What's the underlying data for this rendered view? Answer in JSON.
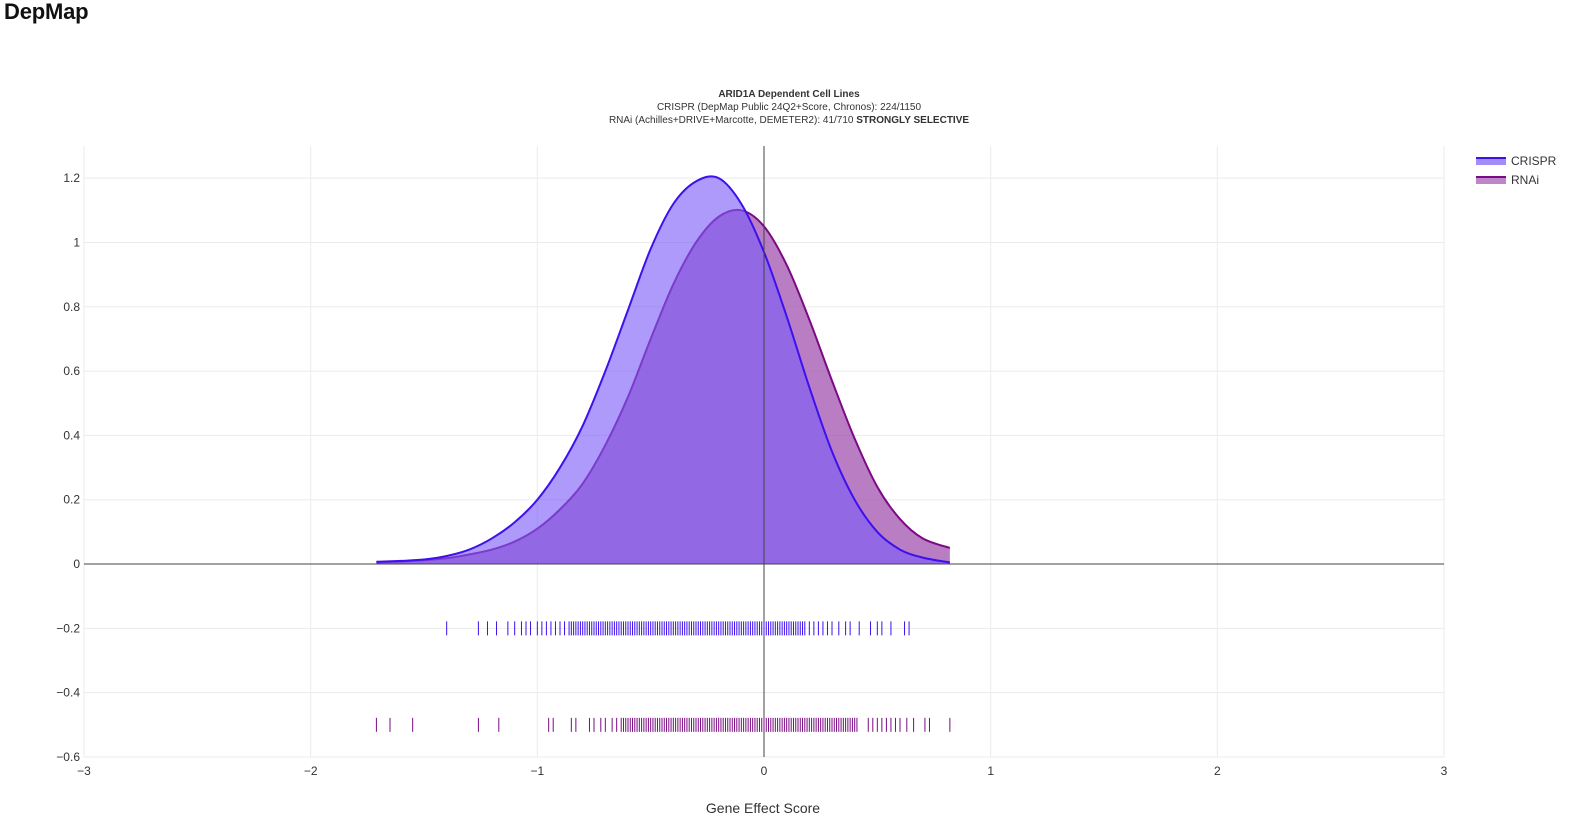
{
  "app": {
    "title": "DepMap"
  },
  "chart_data": {
    "type": "area",
    "title": "ARID1A Dependent Cell Lines",
    "subtitle_lines": [
      {
        "text": "CRISPR (DepMap Public 24Q2+Score, Chronos): 224/1150",
        "bold_suffix": ""
      },
      {
        "text": "RNAi (Achilles+DRIVE+Marcotte, DEMETER2): 41/710 ",
        "bold_suffix": "STRONGLY SELECTIVE"
      }
    ],
    "xlabel": "Gene Effect Score",
    "ylabel": "",
    "xlim": [
      -3,
      3
    ],
    "ylim": [
      -0.6,
      1.3
    ],
    "x_ticks": [
      {
        "value": -3,
        "label": "−3"
      },
      {
        "value": -2,
        "label": "−2"
      },
      {
        "value": -1,
        "label": "−1"
      },
      {
        "value": 0,
        "label": "0"
      },
      {
        "value": 1,
        "label": "1"
      },
      {
        "value": 2,
        "label": "2"
      },
      {
        "value": 3,
        "label": "3"
      }
    ],
    "y_ticks": [
      {
        "value": 1.2,
        "label": "1.2"
      },
      {
        "value": 1,
        "label": "1"
      },
      {
        "value": 0.8,
        "label": "0.8"
      },
      {
        "value": 0.6,
        "label": "0.6"
      },
      {
        "value": 0.4,
        "label": "0.4"
      },
      {
        "value": 0.2,
        "label": "0.2"
      },
      {
        "value": 0,
        "label": "0"
      },
      {
        "value": -0.2,
        "label": "−0.2"
      },
      {
        "value": -0.4,
        "label": "−0.4"
      },
      {
        "value": -0.6,
        "label": "−0.6"
      }
    ],
    "grid": true,
    "legend": "top-right",
    "series": [
      {
        "name": "CRISPR",
        "line_color": "#3d10ee",
        "fill_color": "#7a5cf8",
        "x": [
          -1.71,
          -1.6,
          -1.5,
          -1.4,
          -1.3,
          -1.2,
          -1.1,
          -1.0,
          -0.9,
          -0.8,
          -0.7,
          -0.6,
          -0.5,
          -0.4,
          -0.3,
          -0.2,
          -0.1,
          0.0,
          0.1,
          0.2,
          0.3,
          0.4,
          0.5,
          0.6,
          0.7,
          0.82
        ],
        "y": [
          0.007,
          0.01,
          0.014,
          0.025,
          0.045,
          0.08,
          0.13,
          0.2,
          0.3,
          0.43,
          0.6,
          0.79,
          0.98,
          1.12,
          1.19,
          1.2,
          1.12,
          0.97,
          0.77,
          0.55,
          0.35,
          0.2,
          0.1,
          0.045,
          0.02,
          0.005
        ],
        "rug_y": -0.2,
        "rug_x": [
          -1.4,
          -1.26,
          -1.22,
          -1.18,
          -1.13,
          -1.1,
          -1.07,
          -1.05,
          -1.03,
          -1.0,
          -0.98,
          -0.96,
          -0.94,
          -0.92,
          -0.9,
          -0.88,
          -0.86,
          -0.85,
          -0.84,
          -0.83,
          -0.82,
          -0.81,
          -0.8,
          -0.79,
          -0.78,
          -0.77,
          -0.76,
          -0.75,
          -0.74,
          -0.73,
          -0.72,
          -0.71,
          -0.7,
          -0.69,
          -0.68,
          -0.67,
          -0.66,
          -0.65,
          -0.64,
          -0.63,
          -0.62,
          -0.61,
          -0.6,
          -0.59,
          -0.58,
          -0.57,
          -0.56,
          -0.55,
          -0.54,
          -0.53,
          -0.52,
          -0.51,
          -0.5,
          -0.49,
          -0.48,
          -0.47,
          -0.46,
          -0.45,
          -0.44,
          -0.43,
          -0.42,
          -0.41,
          -0.4,
          -0.39,
          -0.38,
          -0.37,
          -0.36,
          -0.35,
          -0.34,
          -0.33,
          -0.32,
          -0.31,
          -0.3,
          -0.29,
          -0.28,
          -0.27,
          -0.26,
          -0.25,
          -0.24,
          -0.23,
          -0.22,
          -0.21,
          -0.2,
          -0.19,
          -0.18,
          -0.17,
          -0.16,
          -0.15,
          -0.14,
          -0.13,
          -0.12,
          -0.11,
          -0.1,
          -0.09,
          -0.08,
          -0.07,
          -0.06,
          -0.05,
          -0.04,
          -0.03,
          -0.02,
          -0.01,
          0.0,
          0.01,
          0.02,
          0.03,
          0.04,
          0.05,
          0.06,
          0.07,
          0.08,
          0.09,
          0.1,
          0.11,
          0.12,
          0.13,
          0.14,
          0.15,
          0.16,
          0.17,
          0.18,
          0.2,
          0.22,
          0.24,
          0.26,
          0.28,
          0.3,
          0.33,
          0.36,
          0.38,
          0.42,
          0.47,
          0.5,
          0.52,
          0.56,
          0.62,
          0.64
        ]
      },
      {
        "name": "RNAi",
        "line_color": "#7b0a84",
        "fill_color": "#a152b0",
        "x": [
          -1.71,
          -1.6,
          -1.5,
          -1.4,
          -1.3,
          -1.2,
          -1.1,
          -1.0,
          -0.9,
          -0.8,
          -0.7,
          -0.6,
          -0.5,
          -0.4,
          -0.3,
          -0.2,
          -0.1,
          0.0,
          0.1,
          0.2,
          0.3,
          0.4,
          0.5,
          0.6,
          0.7,
          0.82
        ],
        "y": [
          0.005,
          0.008,
          0.012,
          0.018,
          0.03,
          0.045,
          0.07,
          0.11,
          0.17,
          0.25,
          0.37,
          0.52,
          0.7,
          0.87,
          1.0,
          1.08,
          1.1,
          1.05,
          0.93,
          0.76,
          0.57,
          0.39,
          0.24,
          0.14,
          0.08,
          0.05
        ],
        "rug_y": -0.5,
        "rug_x": [
          -1.71,
          -1.65,
          -1.55,
          -1.26,
          -1.17,
          -0.95,
          -0.93,
          -0.85,
          -0.83,
          -0.77,
          -0.75,
          -0.72,
          -0.7,
          -0.67,
          -0.65,
          -0.63,
          -0.62,
          -0.61,
          -0.6,
          -0.59,
          -0.58,
          -0.57,
          -0.56,
          -0.55,
          -0.54,
          -0.53,
          -0.52,
          -0.51,
          -0.5,
          -0.49,
          -0.48,
          -0.47,
          -0.46,
          -0.45,
          -0.44,
          -0.43,
          -0.42,
          -0.41,
          -0.4,
          -0.39,
          -0.38,
          -0.37,
          -0.36,
          -0.35,
          -0.34,
          -0.33,
          -0.32,
          -0.31,
          -0.3,
          -0.29,
          -0.28,
          -0.27,
          -0.26,
          -0.25,
          -0.24,
          -0.23,
          -0.22,
          -0.21,
          -0.2,
          -0.19,
          -0.18,
          -0.17,
          -0.16,
          -0.15,
          -0.14,
          -0.13,
          -0.12,
          -0.11,
          -0.1,
          -0.09,
          -0.08,
          -0.07,
          -0.06,
          -0.05,
          -0.04,
          -0.03,
          -0.02,
          -0.01,
          0.0,
          0.01,
          0.02,
          0.03,
          0.04,
          0.05,
          0.06,
          0.07,
          0.08,
          0.09,
          0.1,
          0.11,
          0.12,
          0.13,
          0.14,
          0.15,
          0.16,
          0.17,
          0.18,
          0.19,
          0.2,
          0.21,
          0.22,
          0.23,
          0.24,
          0.25,
          0.26,
          0.27,
          0.28,
          0.29,
          0.3,
          0.31,
          0.32,
          0.33,
          0.34,
          0.35,
          0.36,
          0.37,
          0.38,
          0.39,
          0.4,
          0.41,
          0.46,
          0.48,
          0.5,
          0.52,
          0.54,
          0.56,
          0.58,
          0.6,
          0.63,
          0.66,
          0.71,
          0.73,
          0.82
        ]
      }
    ]
  }
}
